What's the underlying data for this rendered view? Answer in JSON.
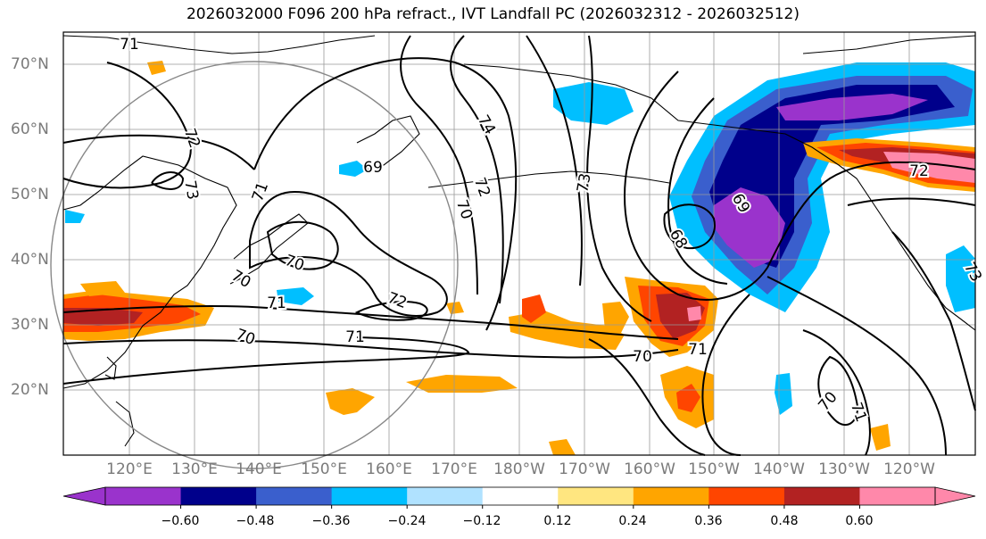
{
  "title": "2026032000 F096 200 hPa refract., IVT Landfall PC (2026032312 - 2026032512)",
  "lat_labels": [
    "70°N",
    "60°N",
    "50°N",
    "40°N",
    "30°N",
    "20°N"
  ],
  "lon_labels": [
    "120°E",
    "130°E",
    "140°E",
    "150°E",
    "160°E",
    "170°E",
    "180°W",
    "170°W",
    "160°W",
    "150°W",
    "140°W",
    "130°W",
    "120°W"
  ],
  "contour_labels": [
    "71",
    "72",
    "73",
    "71",
    "74",
    "72",
    "70",
    "73",
    "69",
    "68",
    "69",
    "72",
    "71",
    "73",
    "70",
    "70",
    "71",
    "72",
    "70",
    "71",
    "70",
    "70",
    "71"
  ],
  "colorbar": {
    "ticks": [
      "−0.60",
      "−0.48",
      "−0.36",
      "−0.24",
      "−0.12",
      "0.12",
      "0.24",
      "0.36",
      "0.48",
      "0.60"
    ],
    "colors": [
      "#9a33cc",
      "#00008b",
      "#3a5fcd",
      "#00bfff",
      "#b0e2ff",
      "#ffffff",
      "#ffe680",
      "#ffa500",
      "#ff4500",
      "#b22222",
      "#ff88aa",
      "#ff88aa"
    ]
  },
  "colors": {
    "purple": "#9a33cc",
    "navy": "#00008b",
    "royal": "#3a5fcd",
    "sky": "#00bfff",
    "pale": "#b0e2ff",
    "yellow": "#ffe680",
    "orange": "#ffa500",
    "red": "#ff4500",
    "firebrick": "#b22222",
    "pink": "#ff88aa"
  }
}
